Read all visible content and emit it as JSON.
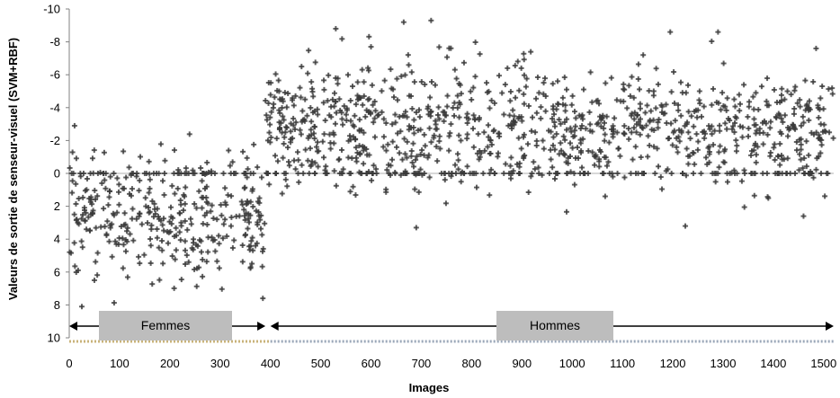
{
  "chart_data": {
    "type": "scatter",
    "title": "",
    "xlabel": "Images",
    "ylabel": "Valeurs de sortie de senseur-visuel (SVM+RBF)",
    "xlim": [
      0,
      1520
    ],
    "ylim": [
      10,
      -10
    ],
    "y_inverted": true,
    "x_ticks": [
      0,
      100,
      200,
      300,
      400,
      500,
      600,
      700,
      800,
      900,
      1000,
      1100,
      1200,
      1300,
      1400,
      1500
    ],
    "y_ticks": [
      -10,
      -8,
      -6,
      -4,
      -2,
      0,
      2,
      4,
      6,
      8,
      10
    ],
    "grid": false,
    "zero_line": true,
    "marker": "plus",
    "point_color": "#3a3a3a",
    "groups": [
      {
        "label": "Femmes",
        "x_range": [
          0,
          390
        ]
      },
      {
        "label": "Hommes",
        "x_range": [
          400,
          1520
        ]
      }
    ],
    "segments": [
      {
        "x_range": [
          0,
          390
        ],
        "y_mean": 2.6,
        "y_spread": 1.9,
        "y_min": -3,
        "y_max": 8.2,
        "approx_count": 390
      },
      {
        "x_range": [
          390,
          1520
        ],
        "y_mean": -2.9,
        "y_spread": 1.8,
        "y_min": -9.3,
        "y_max": 3.5,
        "approx_count": 1130
      }
    ],
    "outliers": [
      {
        "x": 25,
        "y": 8.1
      },
      {
        "x": 50,
        "y": 6.5
      },
      {
        "x": 385,
        "y": 7.6
      },
      {
        "x": 530,
        "y": -8.8
      },
      {
        "x": 665,
        "y": -9.2
      },
      {
        "x": 1195,
        "y": -8.6
      },
      {
        "x": 1290,
        "y": -8.6
      },
      {
        "x": 690,
        "y": 3.3
      },
      {
        "x": 1225,
        "y": 3.2
      },
      {
        "x": 1460,
        "y": 2.6
      },
      {
        "x": 600,
        "y": -7.7
      },
      {
        "x": 1485,
        "y": -7.6
      }
    ]
  },
  "colors": {
    "axis": "#808080",
    "zero_line": "#b0b0b0",
    "group_box": "#bdbdbd",
    "bottom_band_left": "#c9b37a",
    "bottom_band_right": "#9aa7b8"
  }
}
